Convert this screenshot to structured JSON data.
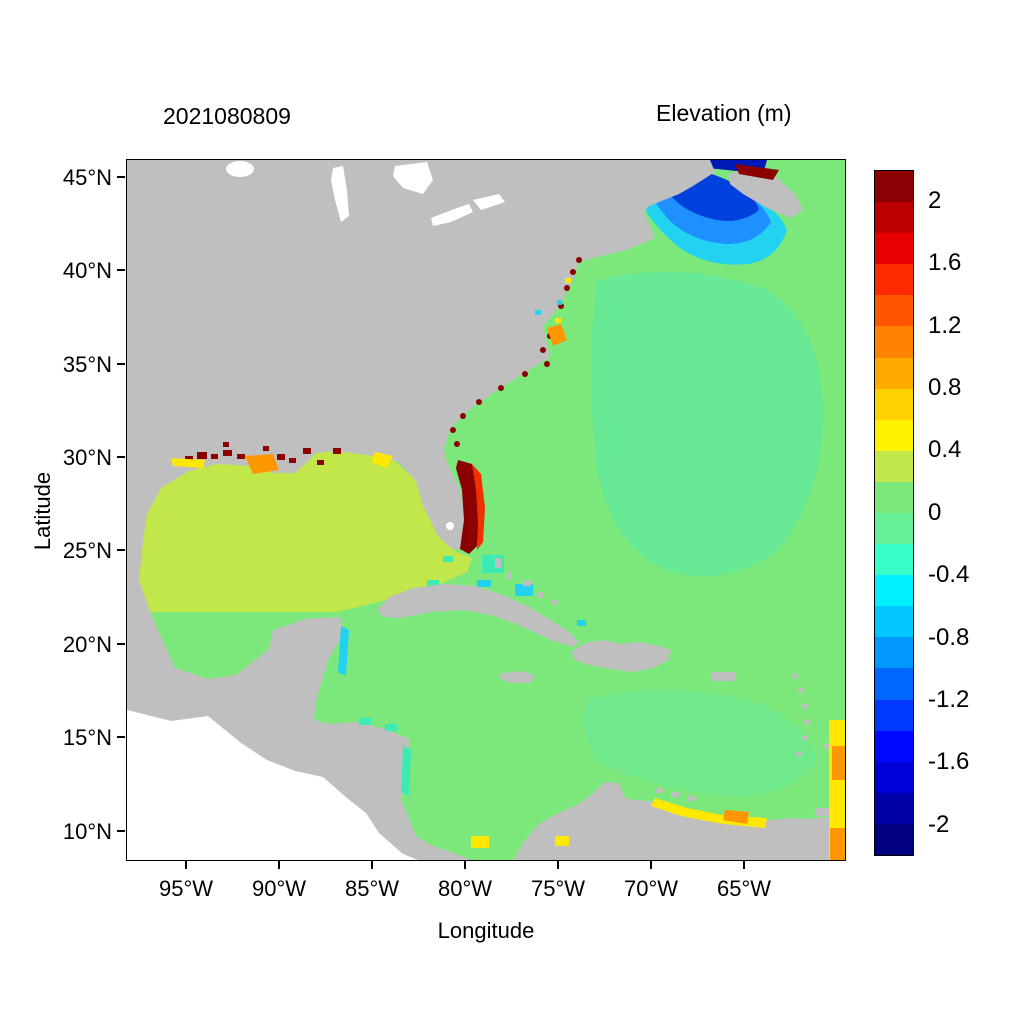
{
  "chart_data": {
    "type": "heatmap",
    "title": "2021080809",
    "colorbar_title": "Elevation (m)",
    "xlabel": "Longitude",
    "ylabel": "Latitude",
    "x_ticks": [
      "95°W",
      "90°W",
      "85°W",
      "80°W",
      "75°W",
      "70°W",
      "65°W"
    ],
    "y_ticks": [
      "45°N",
      "40°N",
      "35°N",
      "30°N",
      "25°N",
      "20°N",
      "15°N",
      "10°N"
    ],
    "x_range_deg": [
      -98.3,
      -59.7
    ],
    "y_range_deg": [
      8.4,
      45.9
    ],
    "grid": false,
    "legend_position": "right-colorbar",
    "colorbar": {
      "units": "m",
      "min": -2.2,
      "max": 2.2,
      "step": 0.2,
      "tick_labels": [
        "2",
        "1.6",
        "1.2",
        "0.8",
        "0.4",
        "0",
        "-0.4",
        "-0.8",
        "-1.2",
        "-1.6",
        "-2"
      ],
      "cell_colors_bottom_to_top": [
        "#000080",
        "#0000A8",
        "#0000D8",
        "#0008FF",
        "#0038FF",
        "#0068FF",
        "#0098FF",
        "#00C8FF",
        "#00F0FF",
        "#38FFC8",
        "#66F096",
        "#7CE87C",
        "#C2E74A",
        "#FFF200",
        "#FFD200",
        "#FFAA00",
        "#FF8200",
        "#FF5500",
        "#FF2A00",
        "#E80000",
        "#BC0000",
        "#8B0000"
      ]
    },
    "map_colors": {
      "land": "#BFBFBF",
      "lake_white": "#FFFFFF",
      "outside_domain": "#FFFFFF",
      "ocean_base": "#7CE87C",
      "ocean_teal_variant": "#68E996",
      "caribbean_variant": "#70E98C",
      "gulf_yellow_green": "#C2E74A",
      "teal": "#3CEBB4",
      "cyan": "#22D2F0",
      "sky_blue": "#1E90FF",
      "deep_blue": "#0040DD",
      "navy": "#0018B8",
      "yellow": "#FFE800",
      "orange": "#FF9800",
      "red": "#F03000",
      "dark_red": "#8B0000"
    },
    "regions": [
      {
        "region": "Open Atlantic",
        "elevation_m": 0.1
      },
      {
        "region": "Caribbean Sea",
        "elevation_m": 0.1
      },
      {
        "region": "Gulf of Mexico",
        "elevation_m": 0.3
      },
      {
        "region": "Gulf of Maine / Scotian Shelf",
        "elevation_m": -0.7
      },
      {
        "region": "Bay of Fundy offshore core",
        "elevation_m": -1.6
      },
      {
        "region": "Bay of Fundy head coastal strip",
        "elevation_m": 1.8
      },
      {
        "region": "Florida Atlantic coast strip",
        "elevation_m": 2.0
      },
      {
        "region": "Northern Gulf coast specks (TX-LA-MS-AL-FL)",
        "elevation_m": 1.5
      },
      {
        "region": "US mid-Atlantic coastal specks (GA-SC-NC-VA-NJ)",
        "elevation_m": 1.5
      },
      {
        "region": "Bahamas banks patches",
        "elevation_m": -0.5
      },
      {
        "region": "Yucatan-Belize coastal strip",
        "elevation_m": -0.6
      },
      {
        "region": "Colombia-Venezuela coast",
        "elevation_m": 0.6
      },
      {
        "region": "Southeast open-boundary strip near 60W, 10-17N",
        "elevation_m": 0.6
      }
    ]
  }
}
